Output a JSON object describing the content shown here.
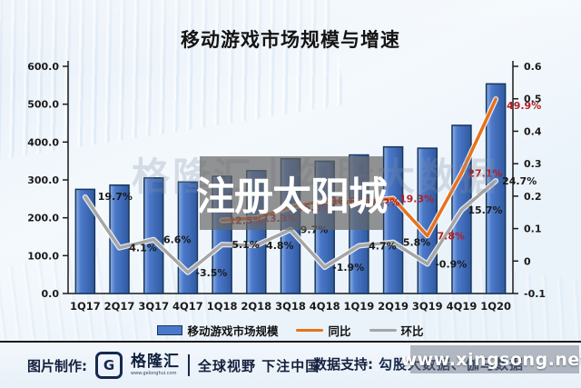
{
  "title": "移动游戏市场规模与增速",
  "center_watermark": "注册太阳城",
  "ghost_watermark": "格隆汇丨勾股大数据",
  "corner_watermark": "www.xingsong.net",
  "legend": [
    {
      "label": "移动游戏市场规模",
      "color": "#4b79ca"
    },
    {
      "label": "同比",
      "color": "#e8711a"
    },
    {
      "label": "环比",
      "color": "#a6a6a6"
    }
  ],
  "footer": {
    "made_by_label": "图片制作:",
    "brand_initial": "G",
    "brand_name": "格隆汇",
    "brand_url": "www.gelonghui.com",
    "brand_slogan": "全球视野 下注中国",
    "data_support_label": "数据支持:",
    "data_support_value": "勾股大数据、伽马数据"
  },
  "chart_data": {
    "type": "bar",
    "subtype": "bar-line-combo",
    "title": "移动游戏市场规模与增速",
    "categories": [
      "1Q17",
      "2Q17",
      "3Q17",
      "4Q17",
      "1Q18",
      "2Q18",
      "3Q18",
      "4Q18",
      "1Q19",
      "2Q19",
      "3Q19",
      "4Q19",
      "1Q20"
    ],
    "series": [
      {
        "name": "移动游戏市场规模",
        "type": "bar",
        "axis": "left",
        "color": "#4b79ca",
        "border_color": "#17375e",
        "values": [
          275.1,
          286.3,
          305.3,
          294.5,
          309.5,
          324.5,
          356.1,
          349.4,
          365.9,
          387.2,
          383.8,
          444.2,
          553.7
        ]
      },
      {
        "name": "同比",
        "type": "line",
        "axis": "right",
        "unit": "%",
        "color": "#e8711a",
        "label_color": "#b01e23",
        "values": [
          null,
          null,
          null,
          null,
          12.5,
          13.3,
          16.6,
          18.6,
          18.2,
          19.3,
          7.8,
          27.1,
          49.9
        ]
      },
      {
        "name": "环比",
        "type": "line",
        "axis": "right",
        "unit": "%",
        "color": "#a6a6a6",
        "label_color": "#1a1a1a",
        "values": [
          19.7,
          4.1,
          6.6,
          -3.5,
          5.1,
          4.8,
          9.7,
          -1.9,
          4.7,
          5.8,
          -0.9,
          15.7,
          24.7
        ]
      }
    ],
    "left_axis": {
      "min": 0,
      "max": 600,
      "ticks": [
        "600.0",
        "500.0",
        "400.0",
        "300.0",
        "200.0",
        "100.0",
        "0.0"
      ]
    },
    "right_axis": {
      "min": -0.1,
      "max": 0.6,
      "ticks": [
        "0.6",
        "0.5",
        "0.4",
        "0.3",
        "0.2",
        "0.1",
        "0",
        "-0.1"
      ]
    },
    "grid": false,
    "legend_position": "bottom"
  }
}
